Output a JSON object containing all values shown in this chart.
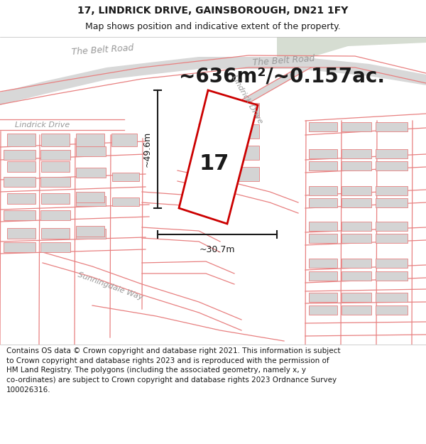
{
  "title_line1": "17, LINDRICK DRIVE, GAINSBOROUGH, DN21 1FY",
  "title_line2": "Map shows position and indicative extent of the property.",
  "area_label": "~636m²/~0.157ac.",
  "plot_number": "17",
  "dim_height": "~49.6m",
  "dim_width": "~30.7m",
  "footer_lines": [
    "Contains OS data © Crown copyright and database right 2021. This information is subject",
    "to Crown copyright and database rights 2023 and is reproduced with the permission of",
    "HM Land Registry. The polygons (including the associated geometry, namely x, y",
    "co-ordinates) are subject to Crown copyright and database rights 2023 Ordnance Survey",
    "100026316."
  ],
  "map_bg": "#f0efee",
  "green_color": "#d6ddd2",
  "road_fill": "#d8d8d8",
  "building_fill": "#d4d4d4",
  "road_line_color": "#e88080",
  "plot_line_color": "#cc0000",
  "dim_line_color": "#1a1a1a",
  "label_color": "#999999",
  "text_color": "#1a1a1a",
  "footer_bg": "#ffffff",
  "title_bg": "#ffffff",
  "title_fontsize": 10,
  "subtitle_fontsize": 9,
  "area_fontsize": 20,
  "plot_num_fontsize": 22,
  "dim_fontsize": 9,
  "road_label_fontsize": 8,
  "footer_fontsize": 7.5
}
